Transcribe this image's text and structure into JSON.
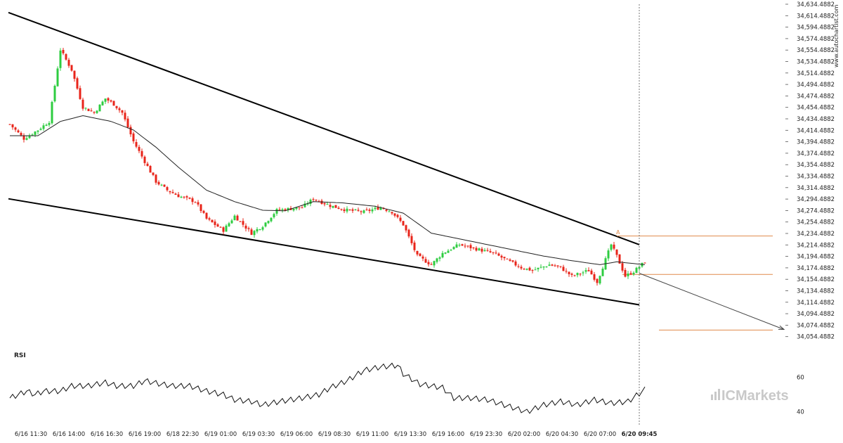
{
  "watermark": "www.autochartist.com",
  "logo_text": "ICMarkets",
  "colors": {
    "bull": "#2ecc40",
    "bear": "#e8241a",
    "channel": "#000000",
    "forecast": "#444444",
    "level": "#e08a4a"
  },
  "chart_data": [
    {
      "type": "candlestick",
      "title": "",
      "ylabel": "",
      "xlabel": "",
      "ylim": [
        34044.4882,
        34634.4882
      ],
      "y_ticks": [
        "34,634.4882",
        "34,614.4882",
        "34,594.4882",
        "34,574.4882",
        "34,554.4882",
        "34,534.4882",
        "34,514.4882",
        "34,494.4882",
        "34,474.4882",
        "34,454.4882",
        "34,434.4882",
        "34,414.4882",
        "34,394.4882",
        "34,374.4882",
        "34,354.4882",
        "34,334.4882",
        "34,314.4882",
        "34,294.4882",
        "34,274.4882",
        "34,254.4882",
        "34,234.4882",
        "34,214.4882",
        "34,194.4882",
        "34,174.4882",
        "34,154.4882",
        "34,134.4882",
        "34,114.4882",
        "34,094.4882",
        "34,074.4882",
        "34,054.4882"
      ],
      "x_ticks": [
        "6/16 11:30",
        "6/16 14:00",
        "6/16 16:30",
        "6/16 19:00",
        "6/18 22:30",
        "6/19 01:00",
        "6/19 03:30",
        "6/19 06:00",
        "6/19 08:30",
        "6/19 11:00",
        "6/19 13:30",
        "6/19 16:00",
        "6/19 23:30",
        "6/20 02:00",
        "6/20 04:30",
        "6/20 07:00",
        "6/20 09:45"
      ],
      "current_x_label": "6/20 09:45",
      "close_keypoints": [
        [
          0,
          34425
        ],
        [
          5,
          34400
        ],
        [
          10,
          34415
        ],
        [
          14,
          34430
        ],
        [
          18,
          34555
        ],
        [
          22,
          34520
        ],
        [
          26,
          34455
        ],
        [
          30,
          34445
        ],
        [
          34,
          34470
        ],
        [
          37,
          34460
        ],
        [
          40,
          34445
        ],
        [
          44,
          34395
        ],
        [
          48,
          34360
        ],
        [
          52,
          34325
        ],
        [
          56,
          34310
        ],
        [
          60,
          34300
        ],
        [
          66,
          34290
        ],
        [
          70,
          34260
        ],
        [
          76,
          34240
        ],
        [
          80,
          34265
        ],
        [
          86,
          34235
        ],
        [
          90,
          34248
        ],
        [
          95,
          34275
        ],
        [
          104,
          34280
        ],
        [
          108,
          34295
        ],
        [
          114,
          34283
        ],
        [
          120,
          34275
        ],
        [
          126,
          34272
        ],
        [
          132,
          34280
        ],
        [
          136,
          34272
        ],
        [
          140,
          34250
        ],
        [
          145,
          34195
        ],
        [
          150,
          34180
        ],
        [
          154,
          34200
        ],
        [
          160,
          34215
        ],
        [
          164,
          34210
        ],
        [
          172,
          34200
        ],
        [
          178,
          34185
        ],
        [
          182,
          34175
        ],
        [
          186,
          34170
        ],
        [
          192,
          34180
        ],
        [
          196,
          34175
        ],
        [
          200,
          34160
        ],
        [
          206,
          34170
        ],
        [
          209,
          34150
        ],
        [
          214,
          34215
        ],
        [
          216,
          34195
        ],
        [
          219,
          34160
        ],
        [
          222,
          34168
        ],
        [
          226,
          34185
        ]
      ],
      "ma_keypoints": [
        [
          0,
          34405
        ],
        [
          10,
          34405
        ],
        [
          18,
          34430
        ],
        [
          26,
          34440
        ],
        [
          36,
          34430
        ],
        [
          44,
          34415
        ],
        [
          52,
          34385
        ],
        [
          60,
          34350
        ],
        [
          70,
          34310
        ],
        [
          80,
          34290
        ],
        [
          90,
          34275
        ],
        [
          98,
          34274
        ],
        [
          108,
          34290
        ],
        [
          118,
          34288
        ],
        [
          130,
          34282
        ],
        [
          140,
          34270
        ],
        [
          150,
          34235
        ],
        [
          160,
          34225
        ],
        [
          170,
          34215
        ],
        [
          180,
          34205
        ],
        [
          190,
          34195
        ],
        [
          200,
          34187
        ],
        [
          210,
          34180
        ],
        [
          216,
          34185
        ],
        [
          226,
          34180
        ]
      ],
      "channel_upper": [
        [
          0,
          34620
        ],
        [
          224,
          34215
        ]
      ],
      "channel_lower": [
        [
          0,
          34295
        ],
        [
          224,
          34110
        ]
      ],
      "forecast_arrow": [
        [
          224,
          34165
        ],
        [
          275,
          34067
        ]
      ],
      "levels": [
        {
          "name": "resistance",
          "value": 34230,
          "x_from": 216,
          "x_to": 275
        },
        {
          "name": "support",
          "value": 34163,
          "x_from": 218,
          "x_to": 275
        },
        {
          "name": "target",
          "value": 34066,
          "x_from": 231,
          "x_to": 275
        }
      ],
      "pattern_point_label": "A",
      "candle_count": 227
    },
    {
      "type": "line",
      "title": "RSI",
      "ylim": [
        35,
        70
      ],
      "y_ticks": [
        "60",
        "40"
      ],
      "keypoints": [
        [
          0,
          48
        ],
        [
          3,
          50
        ],
        [
          6,
          52
        ],
        [
          9,
          50
        ],
        [
          12,
          52
        ],
        [
          18,
          52
        ],
        [
          22,
          55
        ],
        [
          28,
          55
        ],
        [
          34,
          57
        ],
        [
          38,
          55
        ],
        [
          44,
          55
        ],
        [
          48,
          58
        ],
        [
          54,
          56
        ],
        [
          58,
          55
        ],
        [
          64,
          55
        ],
        [
          70,
          52
        ],
        [
          76,
          50
        ],
        [
          80,
          47
        ],
        [
          86,
          46
        ],
        [
          90,
          44
        ],
        [
          96,
          46
        ],
        [
          104,
          48
        ],
        [
          110,
          50
        ],
        [
          114,
          54
        ],
        [
          120,
          58
        ],
        [
          126,
          64
        ],
        [
          132,
          66
        ],
        [
          138,
          67
        ],
        [
          140,
          62
        ],
        [
          146,
          56
        ],
        [
          154,
          54
        ],
        [
          158,
          48
        ],
        [
          164,
          48
        ],
        [
          170,
          47
        ],
        [
          176,
          44
        ],
        [
          180,
          42
        ],
        [
          184,
          40
        ],
        [
          190,
          44
        ],
        [
          196,
          46
        ],
        [
          202,
          44
        ],
        [
          208,
          47
        ],
        [
          214,
          45
        ],
        [
          220,
          46
        ],
        [
          226,
          53
        ]
      ]
    }
  ]
}
